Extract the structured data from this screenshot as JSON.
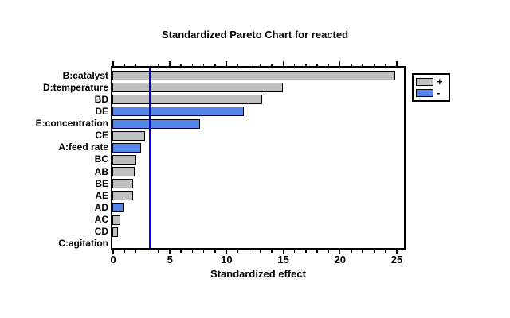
{
  "window": {
    "background": "#ffffff"
  },
  "chart_data": {
    "type": "bar",
    "orientation": "horizontal",
    "title": "Standardized Pareto Chart for reacted",
    "xlabel": "Standardized effect",
    "xlim": [
      0,
      25.7
    ],
    "x_major_ticks": [
      0,
      5,
      10,
      15,
      20,
      25
    ],
    "x_minor_tick_step": 1,
    "grid": "off",
    "legend_position": "right-outside",
    "reference_line_value": 3.3,
    "categories": [
      "B:catalyst",
      "D:temperature",
      "BD",
      "DE",
      "E:concentration",
      "CE",
      "A:feed rate",
      "BC",
      "AB",
      "BE",
      "AE",
      "AD",
      "AC",
      "CD",
      "C:agitation"
    ],
    "values": [
      24.9,
      15.0,
      13.2,
      11.6,
      7.7,
      2.9,
      2.5,
      2.1,
      2.0,
      1.85,
      1.8,
      1.0,
      0.7,
      0.5,
      0.0
    ],
    "signs": [
      "+",
      "+",
      "+",
      "-",
      "-",
      "+",
      "-",
      "+",
      "+",
      "+",
      "+",
      "-",
      "+",
      "+",
      "+"
    ],
    "legend": [
      {
        "label": "+",
        "color": "#c0c0c0"
      },
      {
        "label": "-",
        "color": "#5586ea"
      }
    ],
    "colors": {
      "positive_bar": "#c0c0c0",
      "negative_bar": "#5586ea",
      "reference_line": "#0000ee",
      "frame": "#000000",
      "text": "#000000"
    }
  }
}
